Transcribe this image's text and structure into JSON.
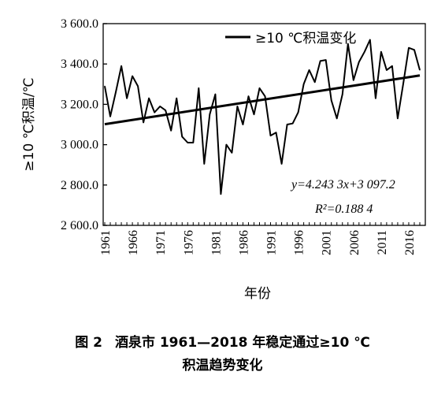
{
  "caption": {
    "label": "图 2",
    "line1": "酒泉市 1961—2018 年稳定通过≥10 ℃",
    "line2": "积温趋势变化"
  },
  "chart_data": {
    "type": "line",
    "ylabel": "≥10 ℃积温/℃",
    "xlabel": "年份",
    "ylim": [
      2600,
      3600
    ],
    "xlim": [
      1961,
      2018
    ],
    "y_ticks": [
      2600,
      2800,
      3000,
      3200,
      3400,
      3600
    ],
    "y_tick_labels": [
      "2 600.0",
      "2 800.0",
      "3 000.0",
      "3 200.0",
      "3 400.0",
      "3 600.0"
    ],
    "x_ticks": [
      1961,
      1966,
      1971,
      1976,
      1981,
      1986,
      1991,
      1996,
      2001,
      2006,
      2011,
      2016
    ],
    "x_tick_labels": [
      "1961",
      "1966",
      "1971",
      "1976",
      "1981",
      "1986",
      "1991",
      "1996",
      "2001",
      "2006",
      "2011",
      "2016"
    ],
    "grid": false,
    "legend": {
      "position": "top-right",
      "entries": [
        "≥10 ℃积温变化"
      ]
    },
    "annotations": [
      "y=4.243 3x+3 097.2",
      "R²=0.188 4"
    ],
    "series": [
      {
        "name": "≥10 ℃积温变化",
        "color": "#000000",
        "x": [
          1961,
          1962,
          1963,
          1964,
          1965,
          1966,
          1967,
          1968,
          1969,
          1970,
          1971,
          1972,
          1973,
          1974,
          1975,
          1976,
          1977,
          1978,
          1979,
          1980,
          1981,
          1982,
          1983,
          1984,
          1985,
          1986,
          1987,
          1988,
          1989,
          1990,
          1991,
          1992,
          1993,
          1994,
          1995,
          1996,
          1997,
          1998,
          1999,
          2000,
          2001,
          2002,
          2003,
          2004,
          2005,
          2006,
          2007,
          2008,
          2009,
          2010,
          2011,
          2012,
          2013,
          2014,
          2015,
          2016,
          2017,
          2018
        ],
        "y": [
          3290,
          3140,
          3260,
          3390,
          3230,
          3340,
          3290,
          3110,
          3230,
          3160,
          3190,
          3170,
          3070,
          3230,
          3040,
          3010,
          3010,
          3280,
          2905,
          3150,
          3250,
          2755,
          3000,
          2960,
          3190,
          3100,
          3240,
          3150,
          3280,
          3240,
          3045,
          3060,
          2905,
          3100,
          3105,
          3160,
          3300,
          3370,
          3310,
          3415,
          3420,
          3220,
          3130,
          3250,
          3500,
          3320,
          3410,
          3460,
          3520,
          3230,
          3460,
          3370,
          3390,
          3130,
          3300,
          3480,
          3470,
          3370
        ]
      }
    ],
    "trend": {
      "slope": 4.2433,
      "intercept": 3097.2,
      "x_origin": 1960
    }
  }
}
